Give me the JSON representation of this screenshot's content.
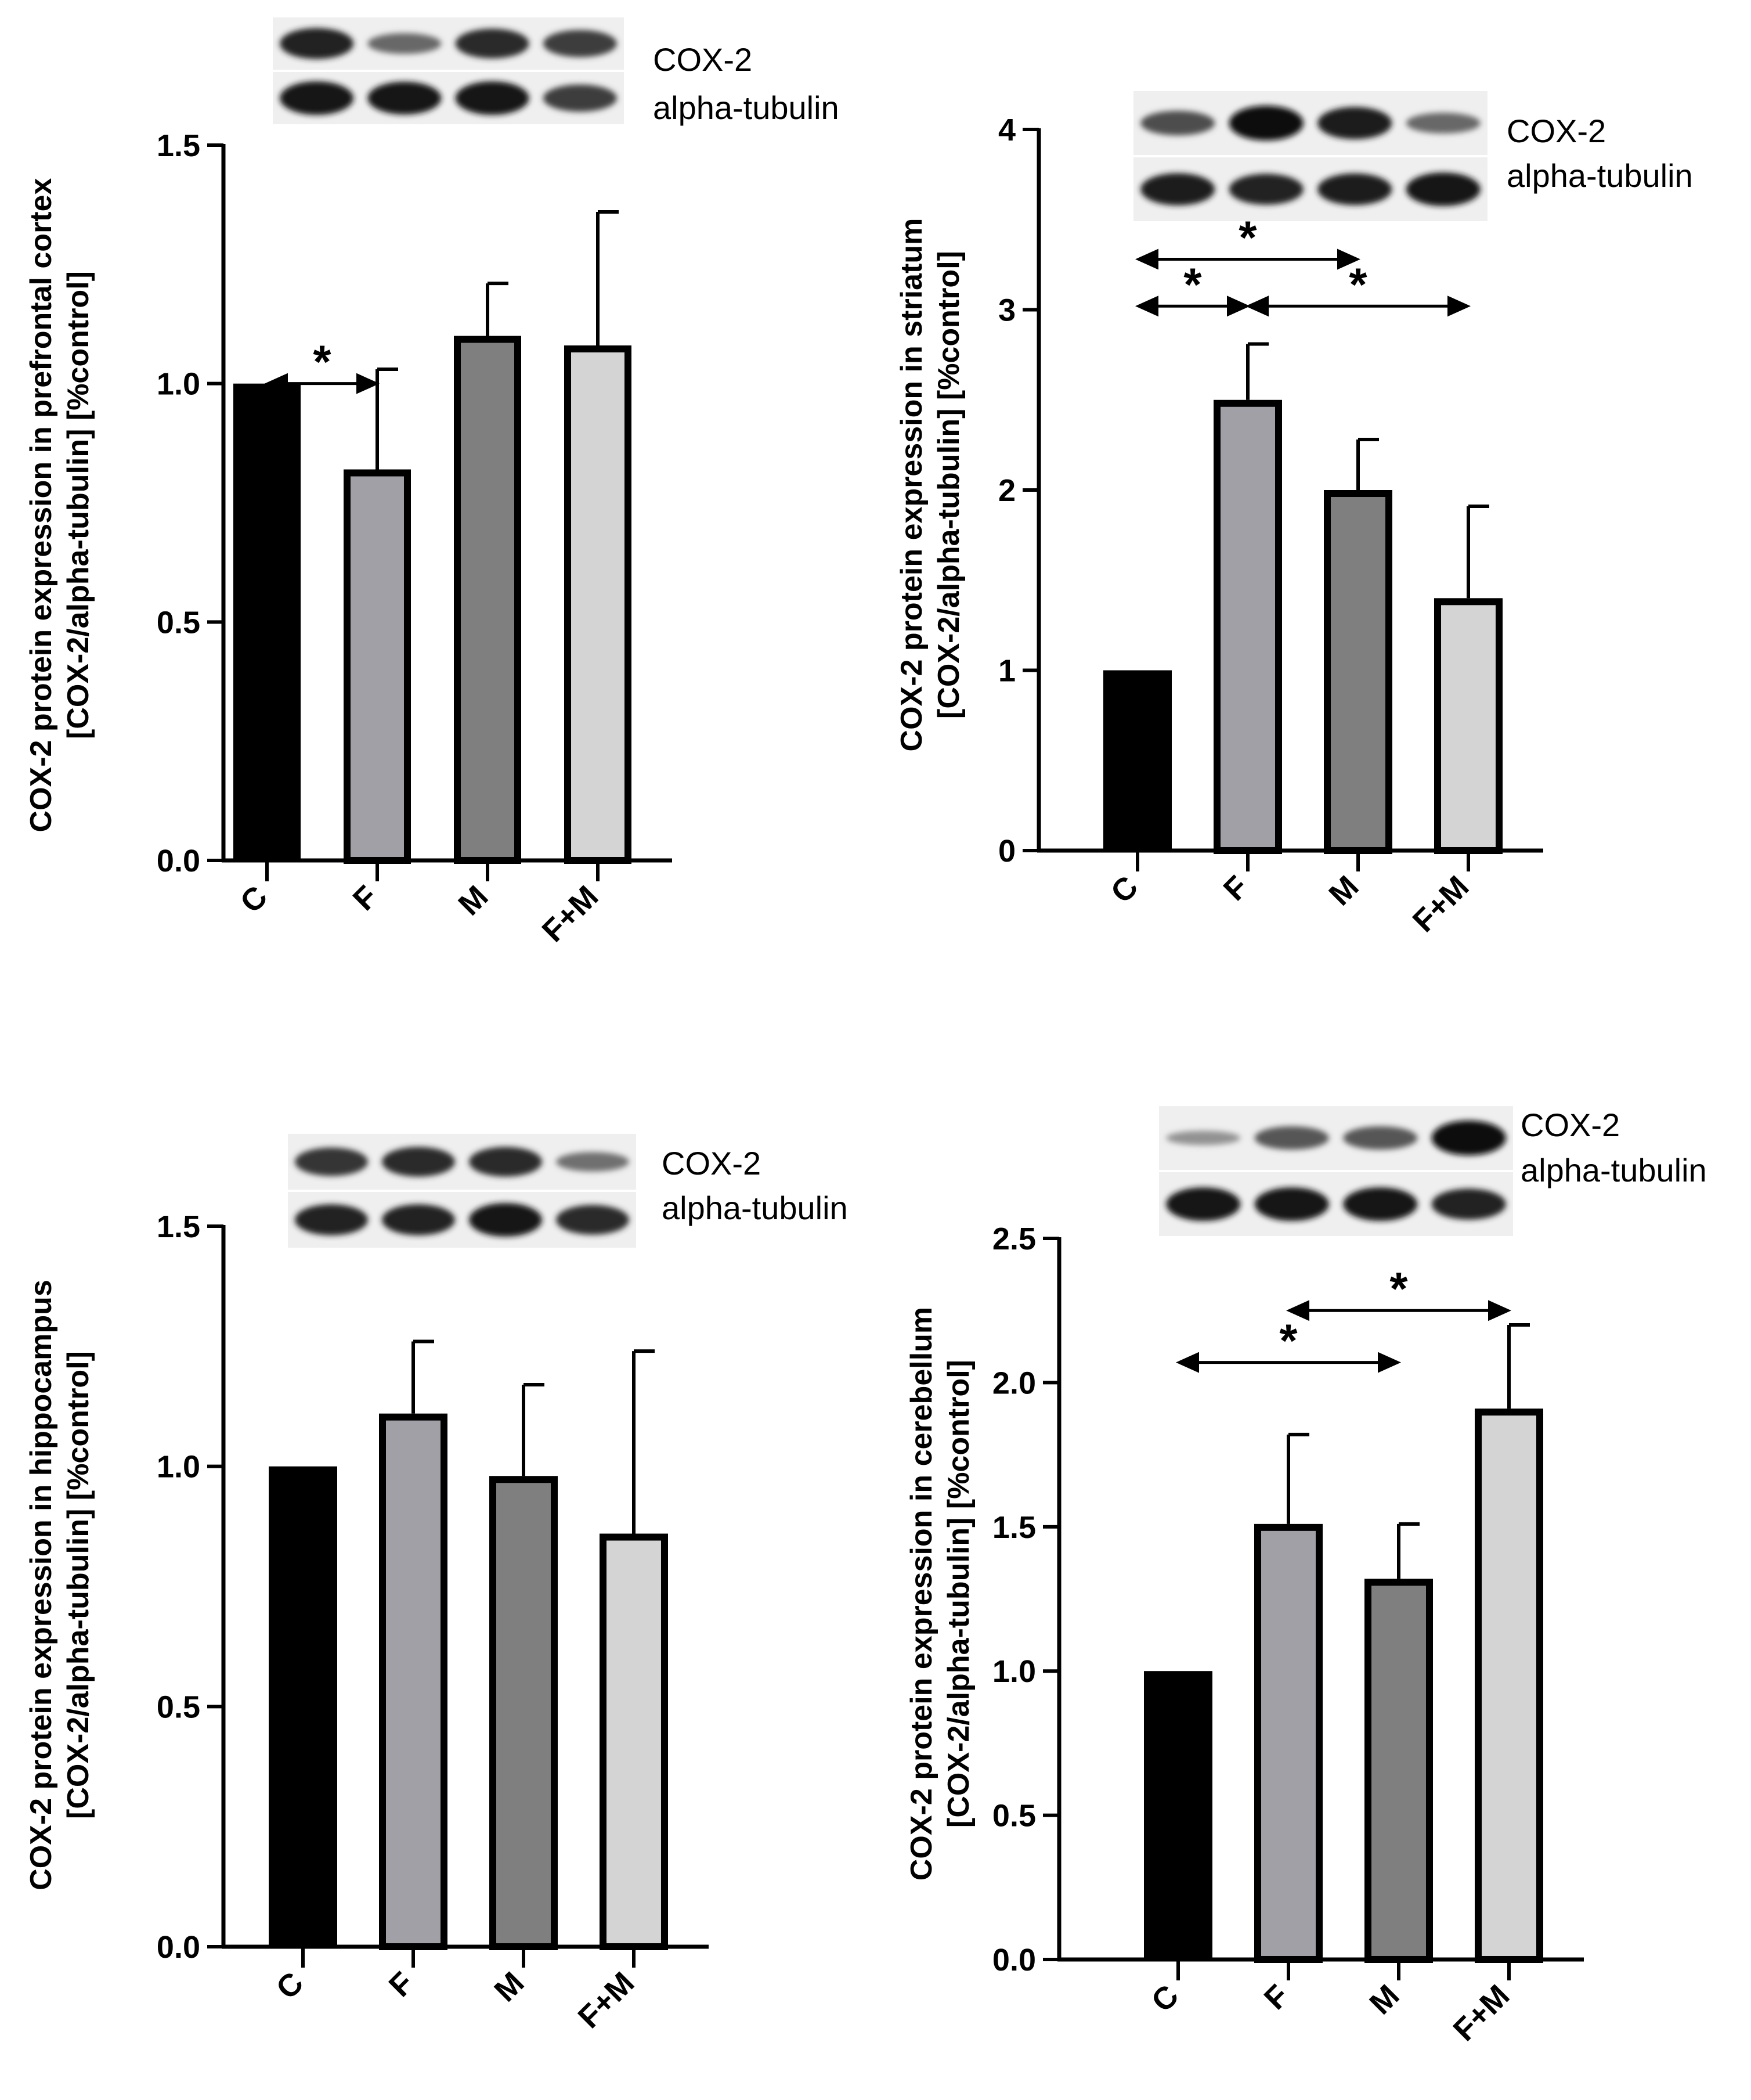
{
  "figure": {
    "blot_labels": [
      "COX-2",
      "alpha-tubulin"
    ]
  },
  "chart_data": [
    {
      "type": "bar",
      "region": "prefrontal cortex",
      "ylabel": [
        "COX-2 protein expression in prefrontal cortex",
        "[COX-2/alpha-tubulin] [%control]"
      ],
      "categories": [
        "C",
        "F",
        "M",
        "F+M"
      ],
      "values": [
        1.0,
        0.82,
        1.1,
        1.08
      ],
      "errors": [
        0.0,
        0.21,
        0.11,
        0.28
      ],
      "colors": [
        "#000000",
        "#a0a0a6",
        "#7f7f7f",
        "#d4d4d4"
      ],
      "ylim": [
        0,
        1.5
      ],
      "yticks": [
        0,
        0.5,
        1.0,
        1.5
      ],
      "ytick_labels": [
        "0.0",
        "0.5",
        "1.0",
        "1.5"
      ],
      "significance": [
        {
          "from": 0,
          "to": 1,
          "label": "*",
          "y": 1.0
        }
      ],
      "blot": {
        "COX-2": [
          0.85,
          0.45,
          0.8,
          0.7
        ],
        "alpha-tubulin": [
          0.95,
          0.92,
          0.95,
          0.7
        ]
      }
    },
    {
      "type": "bar",
      "region": "striatum",
      "ylabel": [
        "COX-2 protein expression in striatum",
        "[COX-2/alpha-tubulin] [%control]"
      ],
      "categories": [
        "C",
        "F",
        "M",
        "F+M"
      ],
      "values": [
        1.0,
        2.5,
        2.0,
        1.4
      ],
      "errors": [
        0.0,
        0.31,
        0.28,
        0.51
      ],
      "colors": [
        "#000000",
        "#a0a0a6",
        "#7f7f7f",
        "#d4d4d4"
      ],
      "ylim": [
        0,
        4
      ],
      "yticks": [
        0,
        1,
        2,
        3,
        4
      ],
      "ytick_labels": [
        "0",
        "1",
        "2",
        "3",
        "4"
      ],
      "significance": [
        {
          "from": 0,
          "to": 2,
          "label": "*",
          "y": 3.28
        },
        {
          "from": 0,
          "to": 1,
          "label": "*",
          "y": 3.02
        },
        {
          "from": 1,
          "to": 3,
          "label": "*",
          "y": 3.02
        }
      ],
      "blot": {
        "COX-2": [
          0.6,
          1.0,
          0.9,
          0.45
        ],
        "alpha-tubulin": [
          0.9,
          0.85,
          0.88,
          0.95
        ]
      }
    },
    {
      "type": "bar",
      "region": "hippocampus",
      "ylabel": [
        "COX-2 protein expression in hippocampus",
        "[COX-2/alpha-tubulin] [%control]"
      ],
      "categories": [
        "C",
        "F",
        "M",
        "F+M"
      ],
      "values": [
        1.0,
        1.11,
        0.98,
        0.86
      ],
      "errors": [
        0.0,
        0.15,
        0.19,
        0.38
      ],
      "colors": [
        "#000000",
        "#a0a0a6",
        "#7f7f7f",
        "#d4d4d4"
      ],
      "ylim": [
        0,
        1.5
      ],
      "yticks": [
        0,
        0.5,
        1.0,
        1.5
      ],
      "ytick_labels": [
        "0.0",
        "0.5",
        "1.0",
        "1.5"
      ],
      "significance": [],
      "blot": {
        "COX-2": [
          0.75,
          0.8,
          0.8,
          0.4
        ],
        "alpha-tubulin": [
          0.85,
          0.85,
          0.95,
          0.8
        ]
      }
    },
    {
      "type": "bar",
      "region": "cerebellum",
      "ylabel": [
        "COX-2 protein expression in cerebellum",
        "[COX-2/alpha-tubulin] [%control]"
      ],
      "categories": [
        "C",
        "F",
        "M",
        "F+M"
      ],
      "values": [
        1.0,
        1.51,
        1.32,
        1.91
      ],
      "errors": [
        0.0,
        0.31,
        0.19,
        0.29
      ],
      "colors": [
        "#000000",
        "#a0a0a6",
        "#7f7f7f",
        "#d4d4d4"
      ],
      "ylim": [
        0,
        2.5
      ],
      "yticks": [
        0,
        0.5,
        1.0,
        1.5,
        2.0,
        2.5
      ],
      "ytick_labels": [
        "0.0",
        "0.5",
        "1.0",
        "1.5",
        "2.0",
        "2.5"
      ],
      "significance": [
        {
          "from": 0,
          "to": 2,
          "label": "*",
          "y": 2.07
        },
        {
          "from": 1,
          "to": 3,
          "label": "*",
          "y": 2.25
        }
      ],
      "blot": {
        "COX-2": [
          0.2,
          0.55,
          0.55,
          1.0
        ],
        "alpha-tubulin": [
          0.95,
          0.95,
          0.95,
          0.85
        ]
      }
    }
  ]
}
